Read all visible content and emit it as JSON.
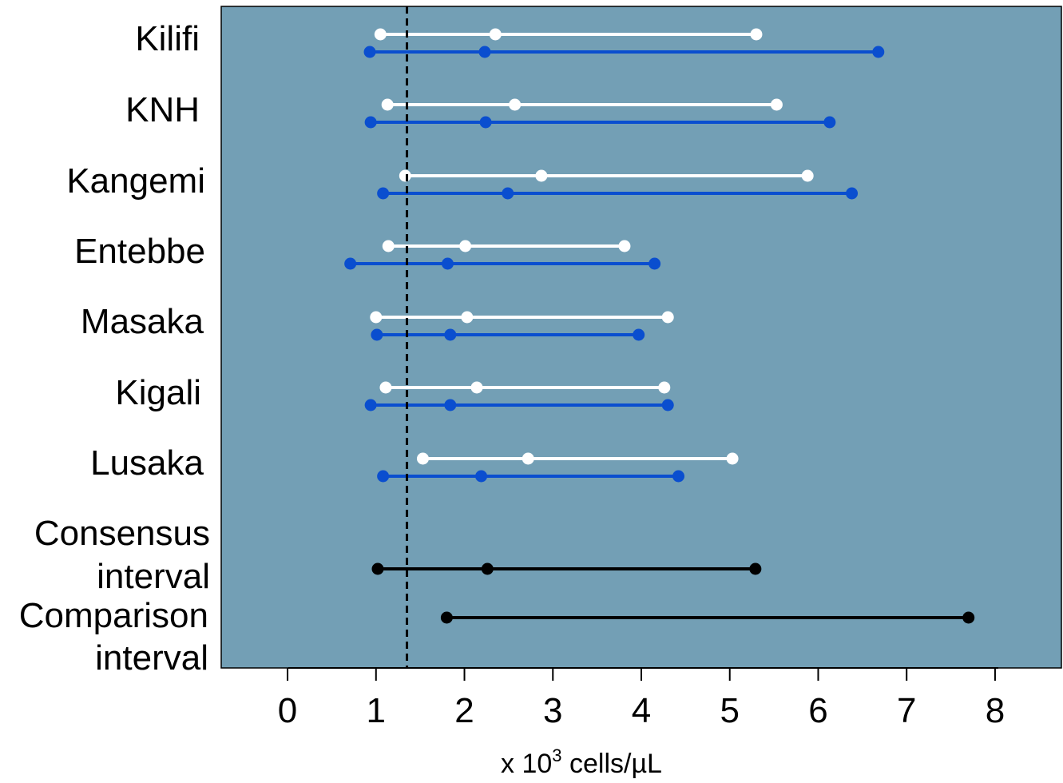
{
  "chart_data": {
    "type": "interval",
    "xlabel": {
      "prefix": "x 10",
      "superscript": "3",
      "suffix": " cells/µL"
    },
    "xlim": [
      -0.75,
      8.75
    ],
    "xticks": [
      "0",
      "1",
      "2",
      "3",
      "4",
      "5",
      "6",
      "7",
      "8"
    ],
    "reference_line_x": 1.35,
    "colors": {
      "panel_background": "#739fb5",
      "white_series": "#ffffff",
      "blue_series": "#0a4ecf",
      "black_series": "#000000"
    },
    "categories": [
      {
        "label_lines": [
          "Kilifi"
        ],
        "intervals": [
          {
            "color": "white",
            "low": 1.05,
            "median": 2.35,
            "high": 5.3
          },
          {
            "color": "blue",
            "low": 0.93,
            "median": 2.23,
            "high": 6.68
          }
        ]
      },
      {
        "label_lines": [
          "KNH"
        ],
        "intervals": [
          {
            "color": "white",
            "low": 1.13,
            "median": 2.57,
            "high": 5.53
          },
          {
            "color": "blue",
            "low": 0.94,
            "median": 2.24,
            "high": 6.13
          }
        ]
      },
      {
        "label_lines": [
          "Kangemi"
        ],
        "intervals": [
          {
            "color": "white",
            "low": 1.33,
            "median": 2.87,
            "high": 5.88
          },
          {
            "color": "blue",
            "low": 1.08,
            "median": 2.49,
            "high": 6.38
          }
        ]
      },
      {
        "label_lines": [
          "Entebbe"
        ],
        "intervals": [
          {
            "color": "white",
            "low": 1.14,
            "median": 2.01,
            "high": 3.81
          },
          {
            "color": "blue",
            "low": 0.71,
            "median": 1.81,
            "high": 4.15
          }
        ]
      },
      {
        "label_lines": [
          "Masaka"
        ],
        "intervals": [
          {
            "color": "white",
            "low": 1.0,
            "median": 2.03,
            "high": 4.3
          },
          {
            "color": "blue",
            "low": 1.01,
            "median": 1.84,
            "high": 3.97
          }
        ]
      },
      {
        "label_lines": [
          "Kigali"
        ],
        "intervals": [
          {
            "color": "white",
            "low": 1.11,
            "median": 2.14,
            "high": 4.26
          },
          {
            "color": "blue",
            "low": 0.94,
            "median": 1.84,
            "high": 4.3
          }
        ]
      },
      {
        "label_lines": [
          "Lusaka"
        ],
        "intervals": [
          {
            "color": "white",
            "low": 1.53,
            "median": 2.72,
            "high": 5.03
          },
          {
            "color": "blue",
            "low": 1.08,
            "median": 2.19,
            "high": 4.42
          }
        ]
      },
      {
        "label_lines": [
          "Consensus",
          "interval"
        ],
        "intervals": [
          {
            "color": "black",
            "low": 1.02,
            "median": 2.26,
            "high": 5.29
          }
        ]
      },
      {
        "label_lines": [
          "Comparison",
          "interval"
        ],
        "intervals": [
          {
            "color": "black",
            "low": 1.8,
            "high": 7.7
          }
        ]
      }
    ]
  }
}
